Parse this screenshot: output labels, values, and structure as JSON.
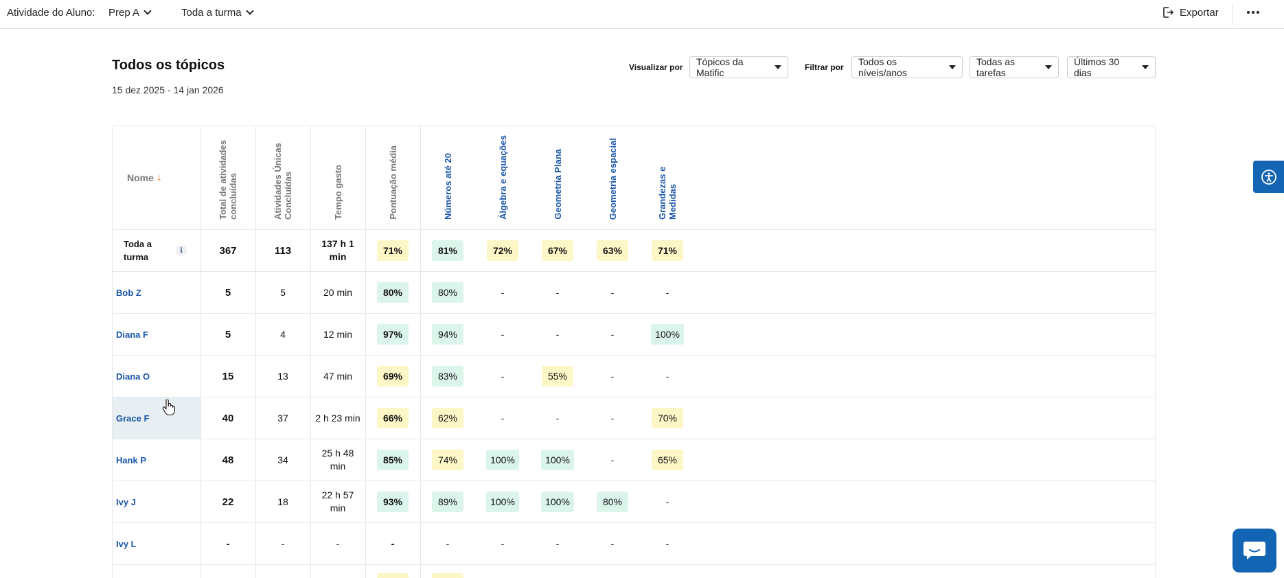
{
  "topbar": {
    "app_label": "Atividade do Aluno:",
    "class_selector": "Prep A",
    "group_selector": "Toda a turma",
    "export_label": "Exportar"
  },
  "header": {
    "title": "Todos os tópicos",
    "date_range": "15 dez 2025 - 14 jan 2026",
    "view_by_label": "Visualizar por",
    "view_by_value": "Tópicos da Matific",
    "filter_by_label": "Filtrar por",
    "filter_levels": "Todos os níveis/anos",
    "filter_tasks": "Todas as tarefas",
    "filter_period": "Últimos 30 dias"
  },
  "table": {
    "name_header": "Nome",
    "stat_headers": [
      "Total de atividades concluídas",
      "Atividades Únicas Concluídas",
      "Tempo gasto",
      "Pontuação média"
    ],
    "topic_headers": [
      "Números até 20",
      "Álgebra e equações",
      "Geometria Plana",
      "Geometria espacial",
      "Grandezas e Medidas"
    ],
    "class_row": {
      "name": "Toda a turma",
      "total": "367",
      "unique": "113",
      "time": "137 h 1 min",
      "avg": "71%",
      "topics": [
        "81%",
        "72%",
        "67%",
        "63%",
        "71%"
      ]
    },
    "rows": [
      {
        "name": "Bob Z",
        "total": "5",
        "unique": "5",
        "time": "20 min",
        "avg": "80%",
        "topics": [
          "80%",
          "-",
          "-",
          "-",
          "-"
        ]
      },
      {
        "name": "Diana F",
        "total": "5",
        "unique": "4",
        "time": "12 min",
        "avg": "97%",
        "topics": [
          "94%",
          "-",
          "-",
          "-",
          "100%"
        ]
      },
      {
        "name": "Diana O",
        "total": "15",
        "unique": "13",
        "time": "47 min",
        "avg": "69%",
        "topics": [
          "83%",
          "-",
          "55%",
          "-",
          "-"
        ]
      },
      {
        "name": "Grace F",
        "total": "40",
        "unique": "37",
        "time": "2 h 23 min",
        "avg": "66%",
        "topics": [
          "62%",
          "-",
          "-",
          "-",
          "70%"
        ]
      },
      {
        "name": "Hank P",
        "total": "48",
        "unique": "34",
        "time": "25 h 48 min",
        "avg": "85%",
        "topics": [
          "74%",
          "100%",
          "100%",
          "-",
          "65%"
        ]
      },
      {
        "name": "Ivy J",
        "total": "22",
        "unique": "18",
        "time": "22 h 57 min",
        "avg": "93%",
        "topics": [
          "89%",
          "100%",
          "100%",
          "80%",
          "-"
        ]
      },
      {
        "name": "Ivy L",
        "total": "-",
        "unique": "-",
        "time": "-",
        "avg": "-",
        "topics": [
          "-",
          "-",
          "-",
          "-",
          "-"
        ]
      }
    ]
  },
  "colors": {
    "accent_blue": "#1464b4",
    "link_blue": "#1a56a8",
    "chip_yellow": "#fdf6c7",
    "chip_green": "#dcf5ea",
    "sort_arrow": "#e07b1a"
  },
  "icons": {
    "class_dropdown": "chevron-down-icon",
    "export": "export-icon",
    "more": "more-horizontal-icon",
    "info": "info-icon",
    "accessibility": "accessibility-icon",
    "chat": "chat-icon"
  }
}
